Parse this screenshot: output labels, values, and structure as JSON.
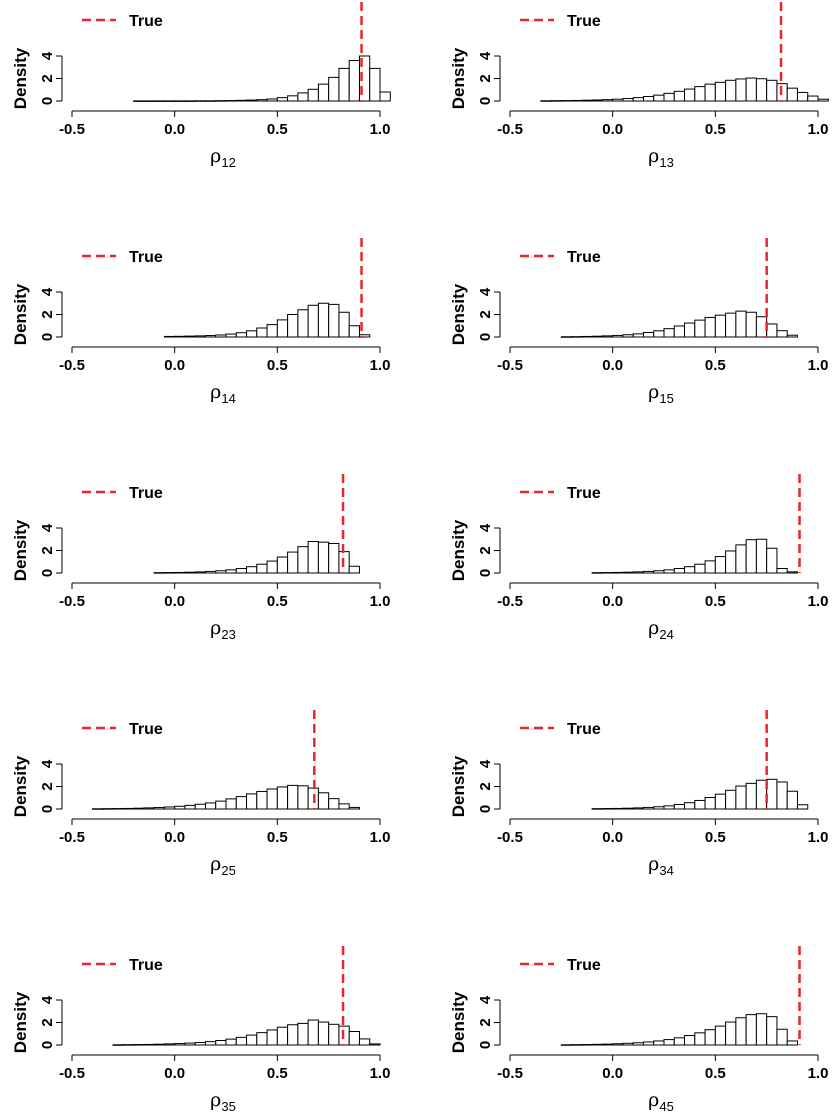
{
  "legend_label": "True",
  "colors": {
    "true_line": "#e8262e",
    "bar_fill": "#ffffff",
    "bar_stroke": "#000000"
  },
  "chart_data": [
    {
      "type": "bar",
      "xlabel_symbol": "ρ",
      "xlabel_subscript": "12",
      "ylabel": "Density",
      "xlim": [
        -0.5,
        1.0
      ],
      "ylim": [
        0,
        4
      ],
      "xticks": [
        "-0.5",
        "0.0",
        "0.5",
        "1.0"
      ],
      "yticks": [
        "0",
        "2",
        "4"
      ],
      "bin_start": -0.2,
      "bin_width": 0.05,
      "values": [
        0.01,
        0.01,
        0.01,
        0.01,
        0.01,
        0.01,
        0.02,
        0.02,
        0.03,
        0.04,
        0.06,
        0.08,
        0.12,
        0.18,
        0.3,
        0.46,
        0.72,
        1.04,
        1.5,
        2.1,
        2.9,
        3.6,
        4.0,
        2.9,
        0.8
      ],
      "true_value": 0.91,
      "legend": "True",
      "legend_position": "top-left"
    },
    {
      "type": "bar",
      "xlabel_symbol": "ρ",
      "xlabel_subscript": "13",
      "ylabel": "Density",
      "xlim": [
        -0.5,
        1.0
      ],
      "ylim": [
        0,
        4
      ],
      "xticks": [
        "-0.5",
        "0.0",
        "0.5",
        "1.0"
      ],
      "yticks": [
        "0",
        "2",
        "4"
      ],
      "bin_start": -0.35,
      "bin_width": 0.05,
      "values": [
        0.02,
        0.03,
        0.04,
        0.05,
        0.07,
        0.09,
        0.12,
        0.16,
        0.22,
        0.3,
        0.4,
        0.52,
        0.68,
        0.86,
        1.06,
        1.28,
        1.5,
        1.66,
        1.84,
        1.96,
        2.04,
        1.98,
        1.84,
        1.54,
        1.14,
        0.76,
        0.44,
        0.16
      ],
      "true_value": 0.82,
      "legend": "True",
      "legend_position": "top-left"
    },
    {
      "type": "bar",
      "xlabel_symbol": "ρ",
      "xlabel_subscript": "14",
      "ylabel": "Density",
      "xlim": [
        -0.5,
        1.0
      ],
      "ylim": [
        0,
        4
      ],
      "xticks": [
        "-0.5",
        "0.0",
        "0.5",
        "1.0"
      ],
      "yticks": [
        "0",
        "2",
        "4"
      ],
      "bin_start": -0.05,
      "bin_width": 0.05,
      "values": [
        0.05,
        0.06,
        0.08,
        0.1,
        0.13,
        0.18,
        0.26,
        0.38,
        0.55,
        0.8,
        1.1,
        1.52,
        2.0,
        2.42,
        2.82,
        3.0,
        2.9,
        2.2,
        1.0,
        0.2
      ],
      "true_value": 0.91,
      "legend": "True",
      "legend_position": "top-left"
    },
    {
      "type": "bar",
      "xlabel_symbol": "ρ",
      "xlabel_subscript": "15",
      "ylabel": "Density",
      "xlim": [
        -0.5,
        1.0
      ],
      "ylim": [
        0,
        4
      ],
      "xticks": [
        "-0.5",
        "0.0",
        "0.5",
        "1.0"
      ],
      "yticks": [
        "0",
        "2",
        "4"
      ],
      "bin_start": -0.25,
      "bin_width": 0.05,
      "values": [
        0.02,
        0.03,
        0.05,
        0.07,
        0.1,
        0.14,
        0.2,
        0.28,
        0.4,
        0.55,
        0.74,
        0.98,
        1.24,
        1.5,
        1.74,
        1.94,
        2.12,
        2.3,
        2.2,
        1.8,
        1.16,
        0.56,
        0.16
      ],
      "true_value": 0.75,
      "legend": "True",
      "legend_position": "top-left"
    },
    {
      "type": "bar",
      "xlabel_symbol": "ρ",
      "xlabel_subscript": "23",
      "ylabel": "Density",
      "xlim": [
        -0.5,
        1.0
      ],
      "ylim": [
        0,
        4
      ],
      "xticks": [
        "-0.5",
        "0.0",
        "0.5",
        "1.0"
      ],
      "yticks": [
        "0",
        "2",
        "4"
      ],
      "bin_start": -0.1,
      "bin_width": 0.05,
      "values": [
        0.03,
        0.04,
        0.05,
        0.07,
        0.1,
        0.14,
        0.2,
        0.28,
        0.4,
        0.56,
        0.78,
        1.06,
        1.42,
        1.86,
        2.34,
        2.8,
        2.74,
        2.62,
        1.9,
        0.6
      ],
      "true_value": 0.82,
      "legend": "True",
      "legend_position": "top-left"
    },
    {
      "type": "bar",
      "xlabel_symbol": "ρ",
      "xlabel_subscript": "24",
      "ylabel": "Density",
      "xlim": [
        -0.5,
        1.0
      ],
      "ylim": [
        0,
        4
      ],
      "xticks": [
        "-0.5",
        "0.0",
        "0.5",
        "1.0"
      ],
      "yticks": [
        "0",
        "2",
        "4"
      ],
      "bin_start": -0.1,
      "bin_width": 0.05,
      "values": [
        0.03,
        0.04,
        0.05,
        0.07,
        0.1,
        0.14,
        0.2,
        0.28,
        0.4,
        0.56,
        0.78,
        1.08,
        1.46,
        1.96,
        2.5,
        2.96,
        3.0,
        2.2,
        0.4,
        0.1
      ],
      "true_value": 0.91,
      "legend": "True",
      "legend_position": "top-left"
    },
    {
      "type": "bar",
      "xlabel_symbol": "ρ",
      "xlabel_subscript": "25",
      "ylabel": "Density",
      "xlim": [
        -0.5,
        1.0
      ],
      "ylim": [
        0,
        4
      ],
      "xticks": [
        "-0.5",
        "0.0",
        "0.5",
        "1.0"
      ],
      "yticks": [
        "0",
        "2",
        "4"
      ],
      "bin_start": -0.4,
      "bin_width": 0.05,
      "values": [
        0.02,
        0.03,
        0.04,
        0.05,
        0.07,
        0.1,
        0.13,
        0.18,
        0.24,
        0.32,
        0.42,
        0.54,
        0.7,
        0.9,
        1.1,
        1.34,
        1.56,
        1.78,
        1.96,
        2.1,
        2.06,
        1.86,
        1.44,
        0.92,
        0.46,
        0.14
      ],
      "true_value": 0.68,
      "legend": "True",
      "legend_position": "top-left"
    },
    {
      "type": "bar",
      "xlabel_symbol": "ρ",
      "xlabel_subscript": "34",
      "ylabel": "Density",
      "xlim": [
        -0.5,
        1.0
      ],
      "ylim": [
        0,
        4
      ],
      "xticks": [
        "-0.5",
        "0.0",
        "0.5",
        "1.0"
      ],
      "yticks": [
        "0",
        "2",
        "4"
      ],
      "bin_start": -0.1,
      "bin_width": 0.05,
      "values": [
        0.03,
        0.04,
        0.05,
        0.07,
        0.1,
        0.14,
        0.2,
        0.28,
        0.4,
        0.56,
        0.76,
        1.02,
        1.32,
        1.66,
        2.04,
        2.28,
        2.56,
        2.64,
        2.4,
        1.58,
        0.38
      ],
      "true_value": 0.75,
      "legend": "True",
      "legend_position": "top-left"
    },
    {
      "type": "bar",
      "xlabel_symbol": "ρ",
      "xlabel_subscript": "35",
      "ylabel": "Density",
      "xlim": [
        -0.5,
        1.0
      ],
      "ylim": [
        0,
        4
      ],
      "xticks": [
        "-0.5",
        "0.0",
        "0.5",
        "1.0"
      ],
      "yticks": [
        "0",
        "2",
        "4"
      ],
      "bin_start": -0.3,
      "bin_width": 0.05,
      "values": [
        0.02,
        0.03,
        0.04,
        0.05,
        0.07,
        0.1,
        0.13,
        0.17,
        0.22,
        0.3,
        0.4,
        0.52,
        0.68,
        0.88,
        1.1,
        1.34,
        1.58,
        1.8,
        1.92,
        2.22,
        2.04,
        1.84,
        1.68,
        1.2,
        0.54,
        0.1
      ],
      "true_value": 0.82,
      "legend": "True",
      "legend_position": "top-left"
    },
    {
      "type": "bar",
      "xlabel_symbol": "ρ",
      "xlabel_subscript": "45",
      "ylabel": "Density",
      "xlim": [
        -0.5,
        1.0
      ],
      "ylim": [
        0,
        4
      ],
      "xticks": [
        "-0.5",
        "0.0",
        "0.5",
        "1.0"
      ],
      "yticks": [
        "0",
        "2",
        "4"
      ],
      "bin_start": -0.25,
      "bin_width": 0.05,
      "values": [
        0.02,
        0.03,
        0.04,
        0.06,
        0.08,
        0.11,
        0.15,
        0.2,
        0.27,
        0.36,
        0.48,
        0.64,
        0.84,
        1.08,
        1.36,
        1.68,
        2.04,
        2.42,
        2.7,
        2.78,
        2.52,
        1.4,
        0.36
      ],
      "true_value": 0.91,
      "legend": "True",
      "legend_position": "top-left"
    }
  ]
}
